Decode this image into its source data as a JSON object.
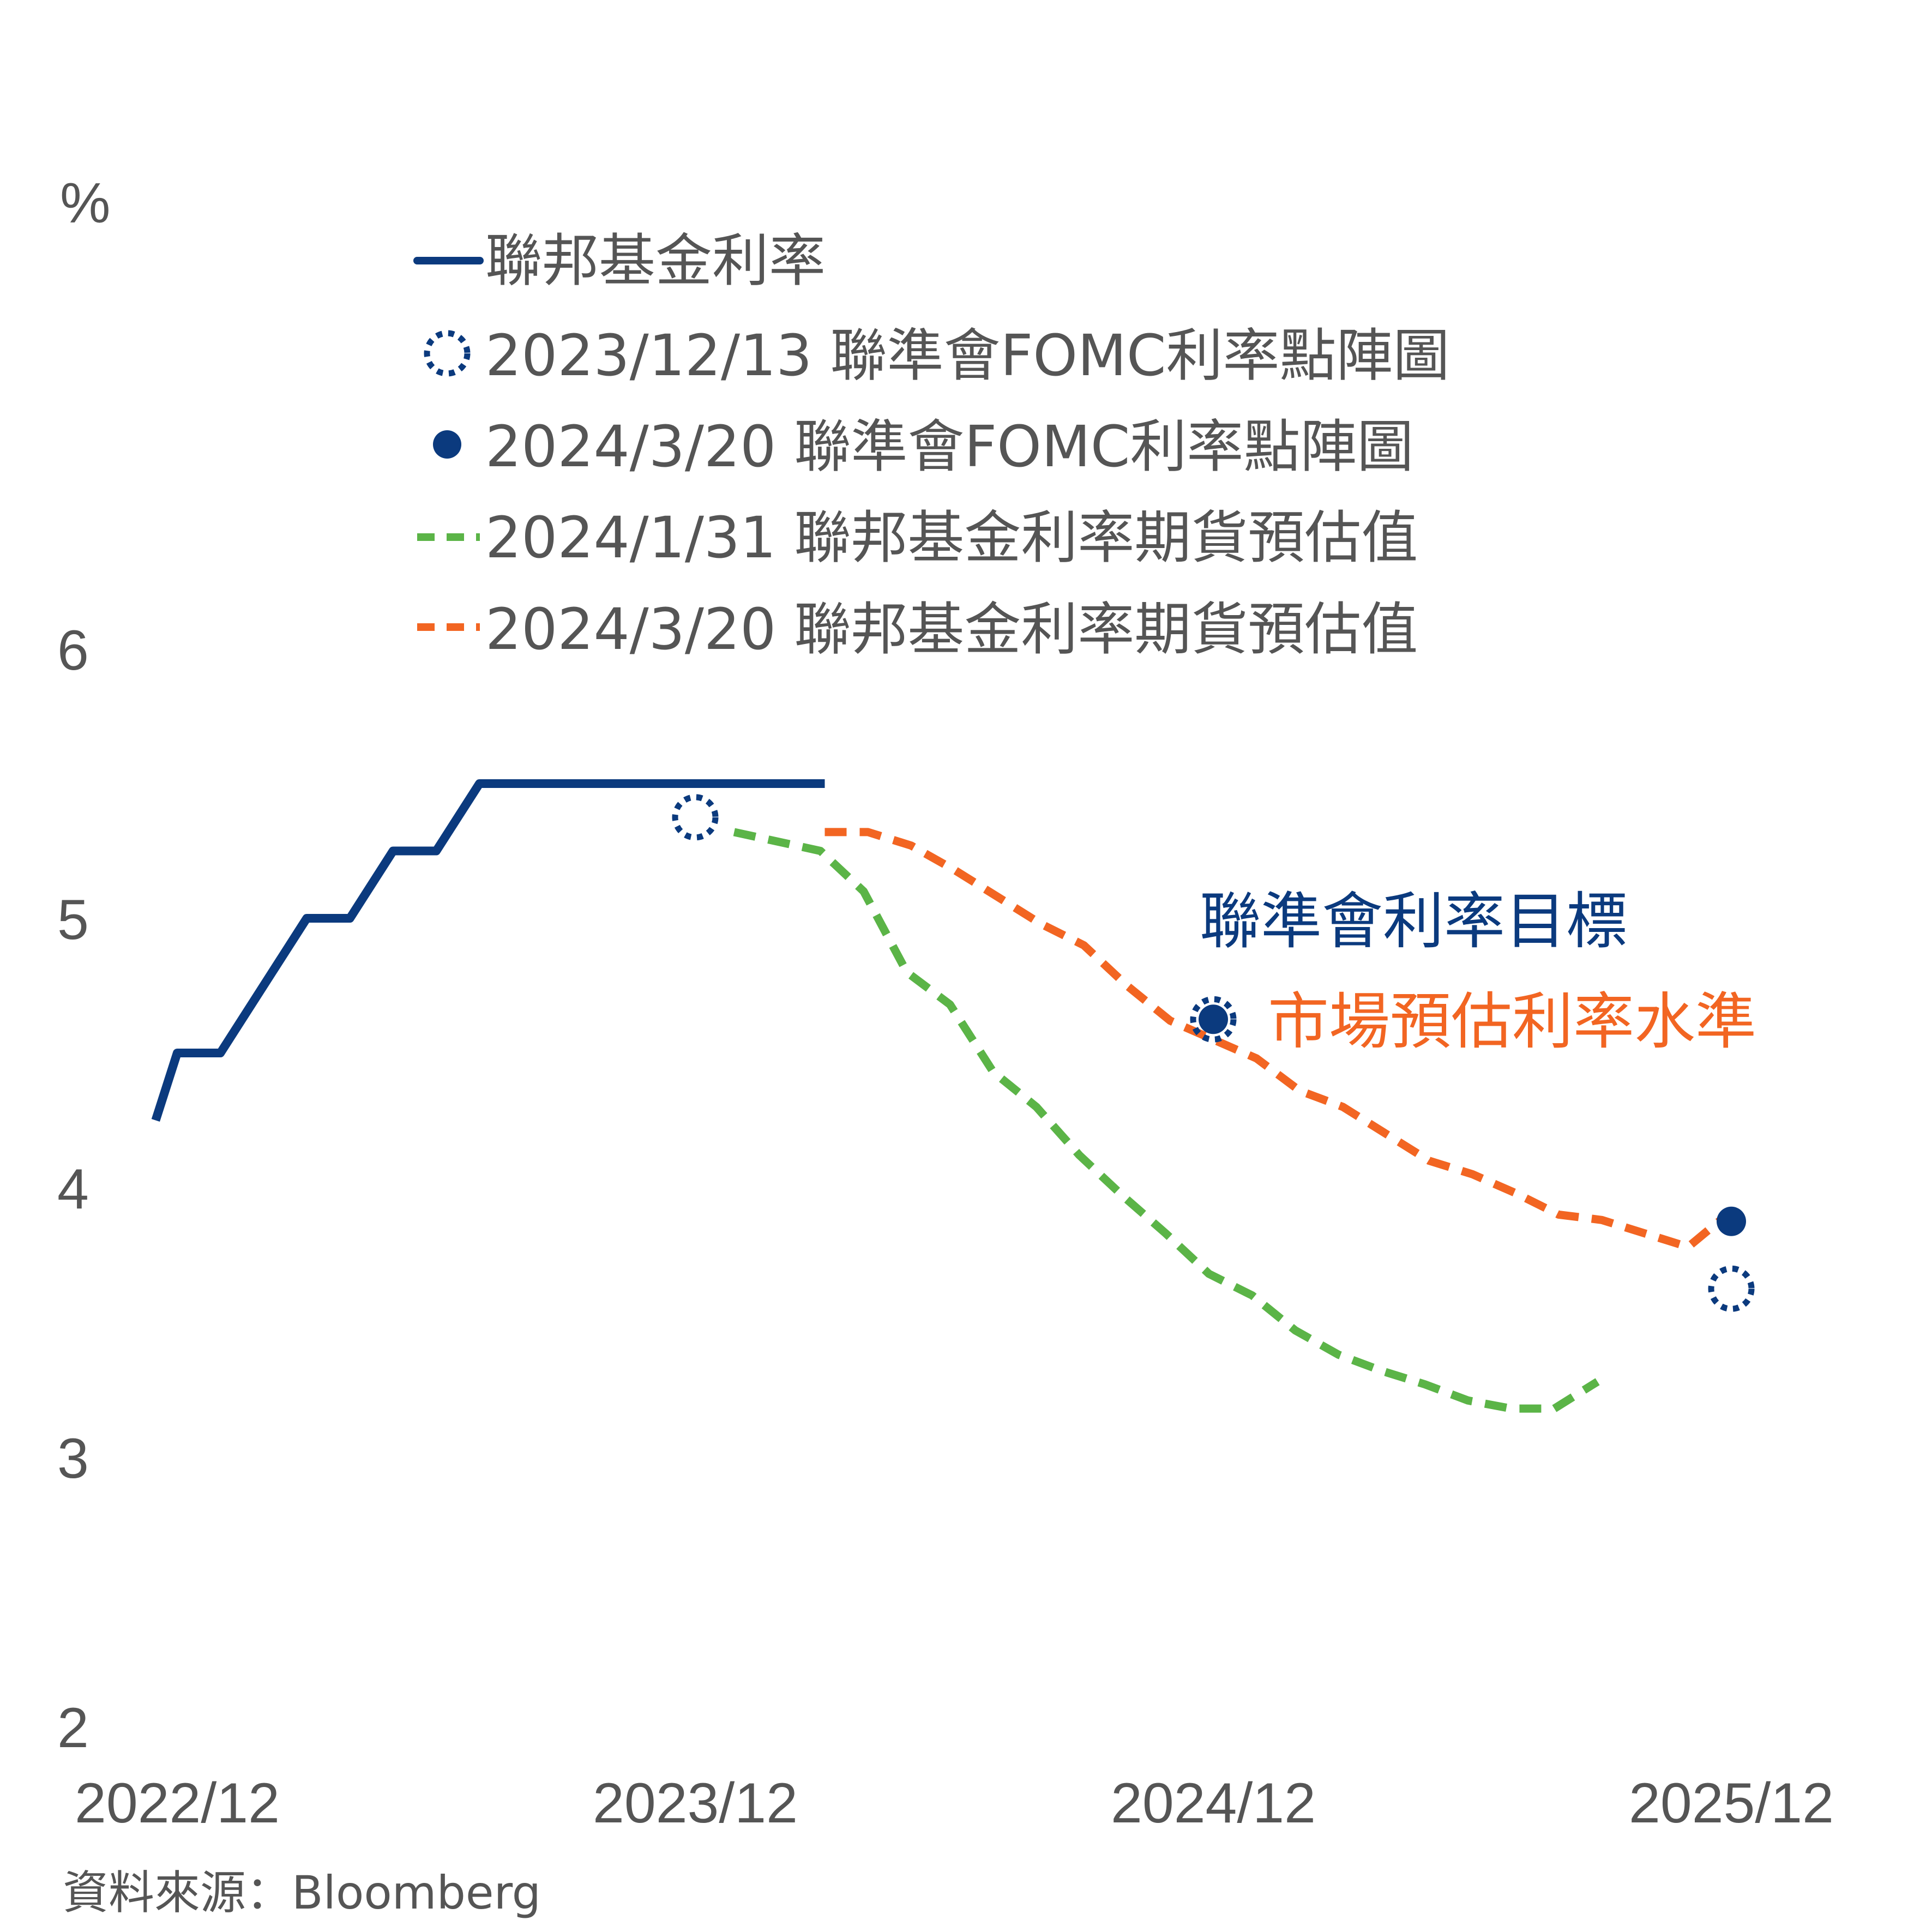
{
  "chart_data": {
    "type": "line",
    "y_unit_label": "%",
    "ylim": [
      2,
      6
    ],
    "y_ticks": [
      6,
      5,
      4,
      3,
      2
    ],
    "x_ticks": [
      {
        "label": "2022/12",
        "x": 0
      },
      {
        "label": "2023/12",
        "x": 12
      },
      {
        "label": "2024/12",
        "x": 24
      },
      {
        "label": "2025/12",
        "x": 36
      }
    ],
    "x_unit": "months since 2022/12",
    "series": [
      {
        "name": "聯邦基金利率",
        "style": "solid",
        "color": "#0b3a7e",
        "points": [
          [
            -0.5,
            4.25
          ],
          [
            0,
            4.5
          ],
          [
            1,
            4.5
          ],
          [
            3,
            5.0
          ],
          [
            4,
            5.0
          ],
          [
            5,
            5.25
          ],
          [
            6,
            5.25
          ],
          [
            7,
            5.5
          ],
          [
            15,
            5.5
          ]
        ]
      },
      {
        "name": "2024/1/31 聯邦基金利率期貨預估值",
        "style": "dashed",
        "color": "#5bb447",
        "points": [
          [
            12.9,
            5.32
          ],
          [
            14.9,
            5.25
          ],
          [
            15.9,
            5.1
          ],
          [
            16.9,
            4.8
          ],
          [
            17.9,
            4.68
          ],
          [
            18.9,
            4.43
          ],
          [
            19.9,
            4.3
          ],
          [
            20.9,
            4.12
          ],
          [
            21.9,
            3.97
          ],
          [
            22.9,
            3.83
          ],
          [
            23.9,
            3.68
          ],
          [
            24.9,
            3.6
          ],
          [
            25.9,
            3.47
          ],
          [
            26.9,
            3.38
          ],
          [
            27.9,
            3.32
          ],
          [
            28.9,
            3.27
          ],
          [
            29.9,
            3.21
          ],
          [
            30.9,
            3.18
          ],
          [
            31.9,
            3.18
          ],
          [
            32.9,
            3.28
          ]
        ]
      },
      {
        "name": "2024/3/20 聯邦基金利率期貨預估值",
        "style": "dashed",
        "color": "#f26522",
        "points": [
          [
            15,
            5.32
          ],
          [
            16,
            5.32
          ],
          [
            17,
            5.27
          ],
          [
            18,
            5.18
          ],
          [
            19,
            5.08
          ],
          [
            20,
            4.98
          ],
          [
            21,
            4.9
          ],
          [
            22,
            4.75
          ],
          [
            23,
            4.62
          ],
          [
            24,
            4.55
          ],
          [
            25,
            4.48
          ],
          [
            26,
            4.36
          ],
          [
            27,
            4.3
          ],
          [
            28,
            4.2
          ],
          [
            29,
            4.1
          ],
          [
            30,
            4.05
          ],
          [
            31,
            3.98
          ],
          [
            32,
            3.9
          ],
          [
            33,
            3.88
          ],
          [
            34,
            3.83
          ],
          [
            35,
            3.78
          ],
          [
            35.9,
            3.9
          ]
        ]
      }
    ],
    "dot_plots": [
      {
        "name": "2023/12/13 聯準會FOMC利率點陣圖",
        "style": "hollow",
        "color": "#0b3a7e",
        "points": [
          [
            12,
            5.375
          ],
          [
            24,
            4.625
          ],
          [
            36,
            3.625
          ]
        ]
      },
      {
        "name": "2024/3/20 聯準會FOMC利率點陣圖",
        "style": "filled",
        "color": "#0b3a7e",
        "points": [
          [
            24,
            4.625
          ],
          [
            36,
            3.875
          ]
        ]
      }
    ]
  },
  "legend": {
    "items": [
      {
        "label": "聯邦基金利率"
      },
      {
        "label": "2023/12/13 聯準會FOMC利率點陣圖"
      },
      {
        "label": "2024/3/20 聯準會FOMC利率點陣圖"
      },
      {
        "label": "2024/1/31 聯邦基金利率期貨預估值"
      },
      {
        "label": "2024/3/20 聯邦基金利率期貨預估值"
      }
    ]
  },
  "annotations": {
    "fed_target": "聯準會利率目標",
    "market_estimate": "市場預估利率水準"
  },
  "source": "資料來源：Bloomberg",
  "colors": {
    "navy": "#0b3a7e",
    "green": "#5bb447",
    "orange": "#f26522",
    "gray_text": "#555555"
  }
}
